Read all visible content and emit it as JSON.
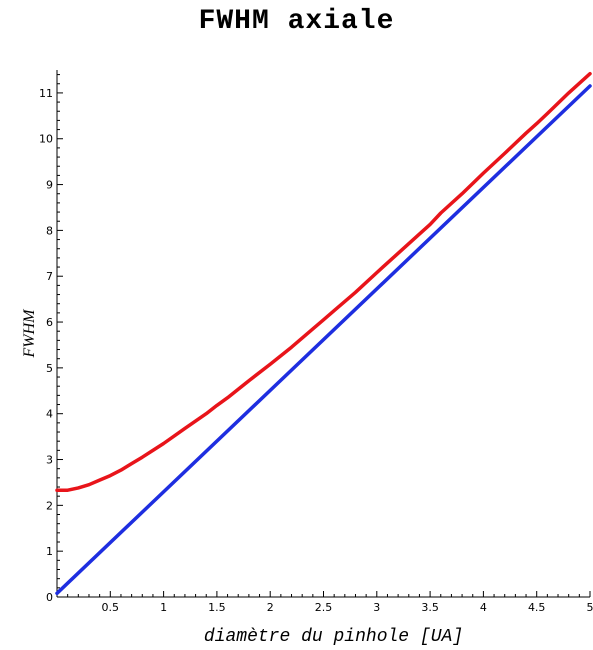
{
  "chart_data": {
    "type": "line",
    "title": "FWHM axiale",
    "xlabel": "diamètre du pinhole [UA]",
    "ylabel": "FWHM",
    "xlim": [
      0,
      5
    ],
    "ylim": [
      0,
      11.5
    ],
    "x_ticks": [
      "0.5",
      "1",
      "1.5",
      "2",
      "2.5",
      "3",
      "3.5",
      "4",
      "4.5",
      "5"
    ],
    "y_ticks": [
      "0",
      "1",
      "2",
      "3",
      "4",
      "5",
      "6",
      "7",
      "8",
      "9",
      "10",
      "11"
    ],
    "grid": false,
    "series": [
      {
        "color": "#e8141a",
        "x": [
          0,
          0.1,
          0.2,
          0.3,
          0.4,
          0.5,
          0.6,
          0.7,
          0.8,
          0.9,
          1.0,
          1.2,
          1.4,
          1.5,
          1.6,
          1.8,
          2.0,
          2.2,
          2.4,
          2.5,
          2.6,
          2.8,
          3.0,
          3.2,
          3.4,
          3.5,
          3.6,
          3.8,
          4.0,
          4.2,
          4.4,
          4.5,
          4.6,
          4.8,
          5.0
        ],
        "y": [
          2.33,
          2.33,
          2.38,
          2.45,
          2.55,
          2.65,
          2.77,
          2.91,
          3.05,
          3.2,
          3.35,
          3.68,
          4.0,
          4.18,
          4.35,
          4.72,
          5.08,
          5.45,
          5.85,
          6.05,
          6.25,
          6.65,
          7.08,
          7.5,
          7.92,
          8.13,
          8.38,
          8.8,
          9.25,
          9.68,
          10.12,
          10.33,
          10.55,
          11.0,
          11.42
        ]
      },
      {
        "color": "#1e2ee0",
        "x": [
          0,
          5
        ],
        "y": [
          0.08,
          11.15
        ]
      }
    ]
  }
}
